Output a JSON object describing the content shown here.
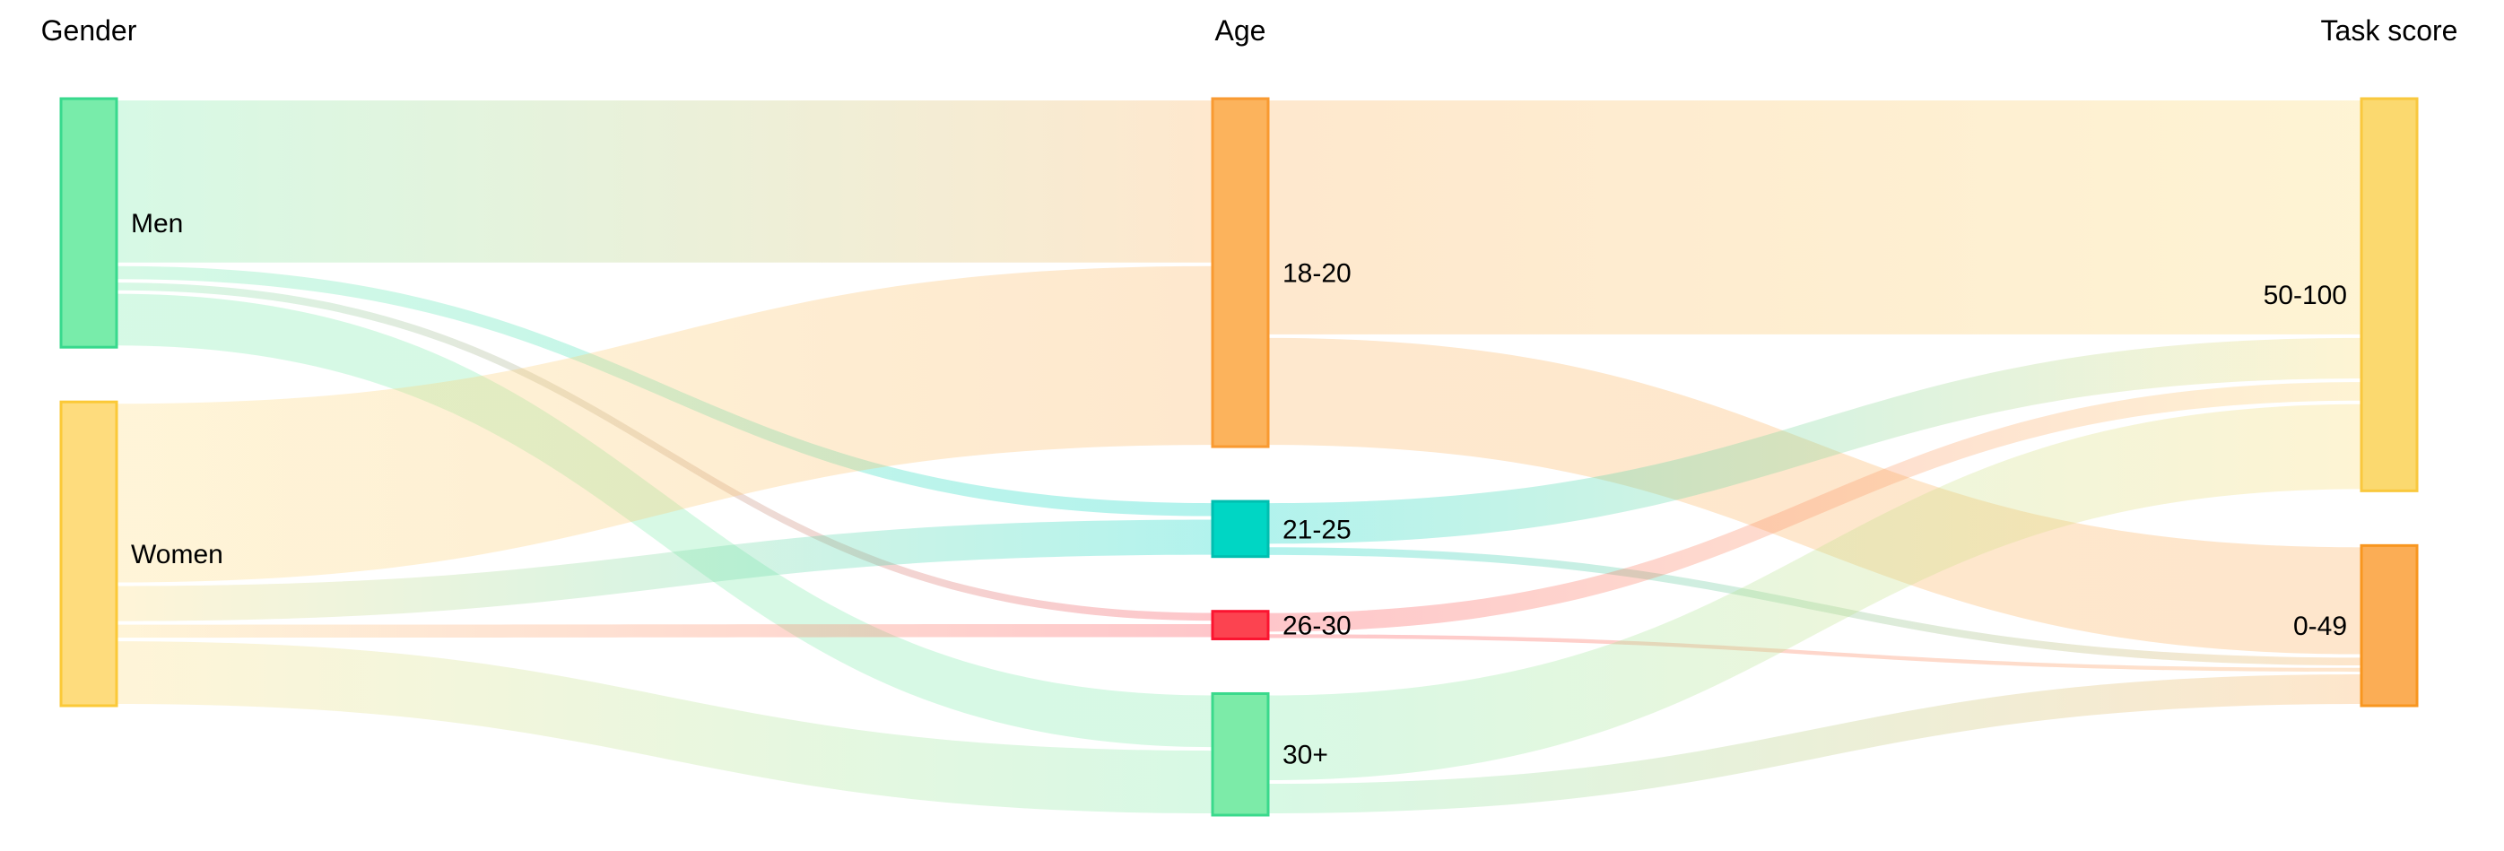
{
  "chart_data": {
    "type": "sankey",
    "title": "",
    "columns": [
      {
        "title": "Gender",
        "nodes": [
          "Men",
          "Women"
        ]
      },
      {
        "title": "Age",
        "nodes": [
          "18-20",
          "21-25",
          "26-30",
          "30+"
        ]
      },
      {
        "title": "Task score",
        "nodes": [
          "50-100",
          "0-49"
        ]
      }
    ],
    "nodes": [
      {
        "id": "Men",
        "label": "Men",
        "column": 0,
        "value": 45,
        "fill": "#78ecaa",
        "stroke": "#38d98d"
      },
      {
        "id": "Women",
        "label": "Women",
        "column": 0,
        "value": 55,
        "fill": "#fedc7d",
        "stroke": "#fbc937"
      },
      {
        "id": "18-20",
        "label": "18-20",
        "column": 1,
        "value": 63,
        "fill": "#fcb35c",
        "stroke": "#f99a31"
      },
      {
        "id": "21-25",
        "label": "21-25",
        "column": 1,
        "value": 10,
        "fill": "#00d6c4",
        "stroke": "#00bfb0"
      },
      {
        "id": "26-30",
        "label": "26-30",
        "column": 1,
        "value": 5,
        "fill": "#fc4350",
        "stroke": "#fb1430"
      },
      {
        "id": "30+",
        "label": "30+",
        "column": 1,
        "value": 22,
        "fill": "#7ceba8",
        "stroke": "#3ad98c"
      },
      {
        "id": "50-100",
        "label": "50-100",
        "column": 2,
        "value": 71,
        "fill": "#fbd96f",
        "stroke": "#f9c83e"
      },
      {
        "id": "0-49",
        "label": "0-49",
        "column": 2,
        "value": 29,
        "fill": "#fbad55",
        "stroke": "#f8961f"
      }
    ],
    "links": [
      {
        "source": "Men",
        "target": "18-20",
        "value": 30
      },
      {
        "source": "Men",
        "target": "21-25",
        "value": 3
      },
      {
        "source": "Men",
        "target": "26-30",
        "value": 2
      },
      {
        "source": "Men",
        "target": "30+",
        "value": 10
      },
      {
        "source": "Women",
        "target": "18-20",
        "value": 33
      },
      {
        "source": "Women",
        "target": "21-25",
        "value": 7
      },
      {
        "source": "Women",
        "target": "26-30",
        "value": 3
      },
      {
        "source": "Women",
        "target": "30+",
        "value": 12
      },
      {
        "source": "18-20",
        "target": "50-100",
        "value": 43
      },
      {
        "source": "18-20",
        "target": "0-49",
        "value": 20
      },
      {
        "source": "21-25",
        "target": "50-100",
        "value": 8
      },
      {
        "source": "21-25",
        "target": "0-49",
        "value": 2
      },
      {
        "source": "26-30",
        "target": "50-100",
        "value": 4
      },
      {
        "source": "26-30",
        "target": "0-49",
        "value": 1
      },
      {
        "source": "30+",
        "target": "50-100",
        "value": 16
      },
      {
        "source": "30+",
        "target": "0-49",
        "value": 6
      }
    ],
    "layout_hints": {
      "link_opacity": 0.3,
      "link_style": "gradient-source-to-target",
      "label_side_by_column": [
        "right",
        "right",
        "left"
      ]
    }
  }
}
